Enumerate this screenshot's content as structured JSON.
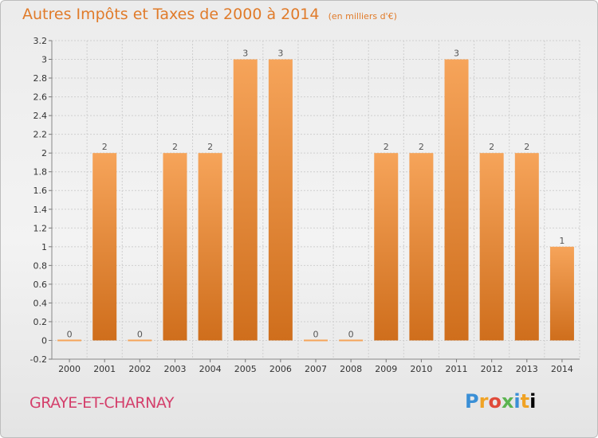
{
  "title": "Autres Impôts et Taxes de 2000 à 2014",
  "subtitle": "(en milliers d'€)",
  "commune": "GRAYE-ET-CHARNAY",
  "logo_letters": [
    "P",
    "r",
    "o",
    "x",
    "i",
    "t",
    "i"
  ],
  "colors": {
    "title": "#e07b2a",
    "commune": "#d43f6b",
    "bar_light": "#f6a45a",
    "bar_dark": "#cf6e1c",
    "grid": "#cfcfcf",
    "axis_text": "#333333",
    "label_text": "#555555"
  },
  "chart_data": {
    "type": "bar",
    "categories": [
      "2000",
      "2001",
      "2002",
      "2003",
      "2004",
      "2005",
      "2006",
      "2007",
      "2008",
      "2009",
      "2010",
      "2011",
      "2012",
      "2013",
      "2014"
    ],
    "values": [
      0,
      2,
      0,
      2,
      2,
      3,
      3,
      0,
      0,
      2,
      2,
      3,
      2,
      2,
      1
    ],
    "value_labels": [
      "0",
      "2",
      "0",
      "2",
      "2",
      "3",
      "3",
      "0",
      "0",
      "2",
      "2",
      "3",
      "2",
      "2",
      "1"
    ],
    "ylim": [
      -0.2,
      3.2
    ],
    "yticks": [
      -0.2,
      0,
      0.2,
      0.4,
      0.6,
      0.8,
      1,
      1.2,
      1.4,
      1.6,
      1.8,
      2,
      2.2,
      2.4,
      2.6,
      2.8,
      3,
      3.2
    ],
    "ytick_labels": [
      "-0.2",
      "0",
      "0.2",
      "0.4",
      "0.6",
      "0.8",
      "1",
      "1.2",
      "1.4",
      "1.6",
      "1.8",
      "2",
      "2.2",
      "2.4",
      "2.6",
      "2.8",
      "3",
      "3.2"
    ],
    "grid": true,
    "xlabel": "",
    "ylabel": ""
  }
}
